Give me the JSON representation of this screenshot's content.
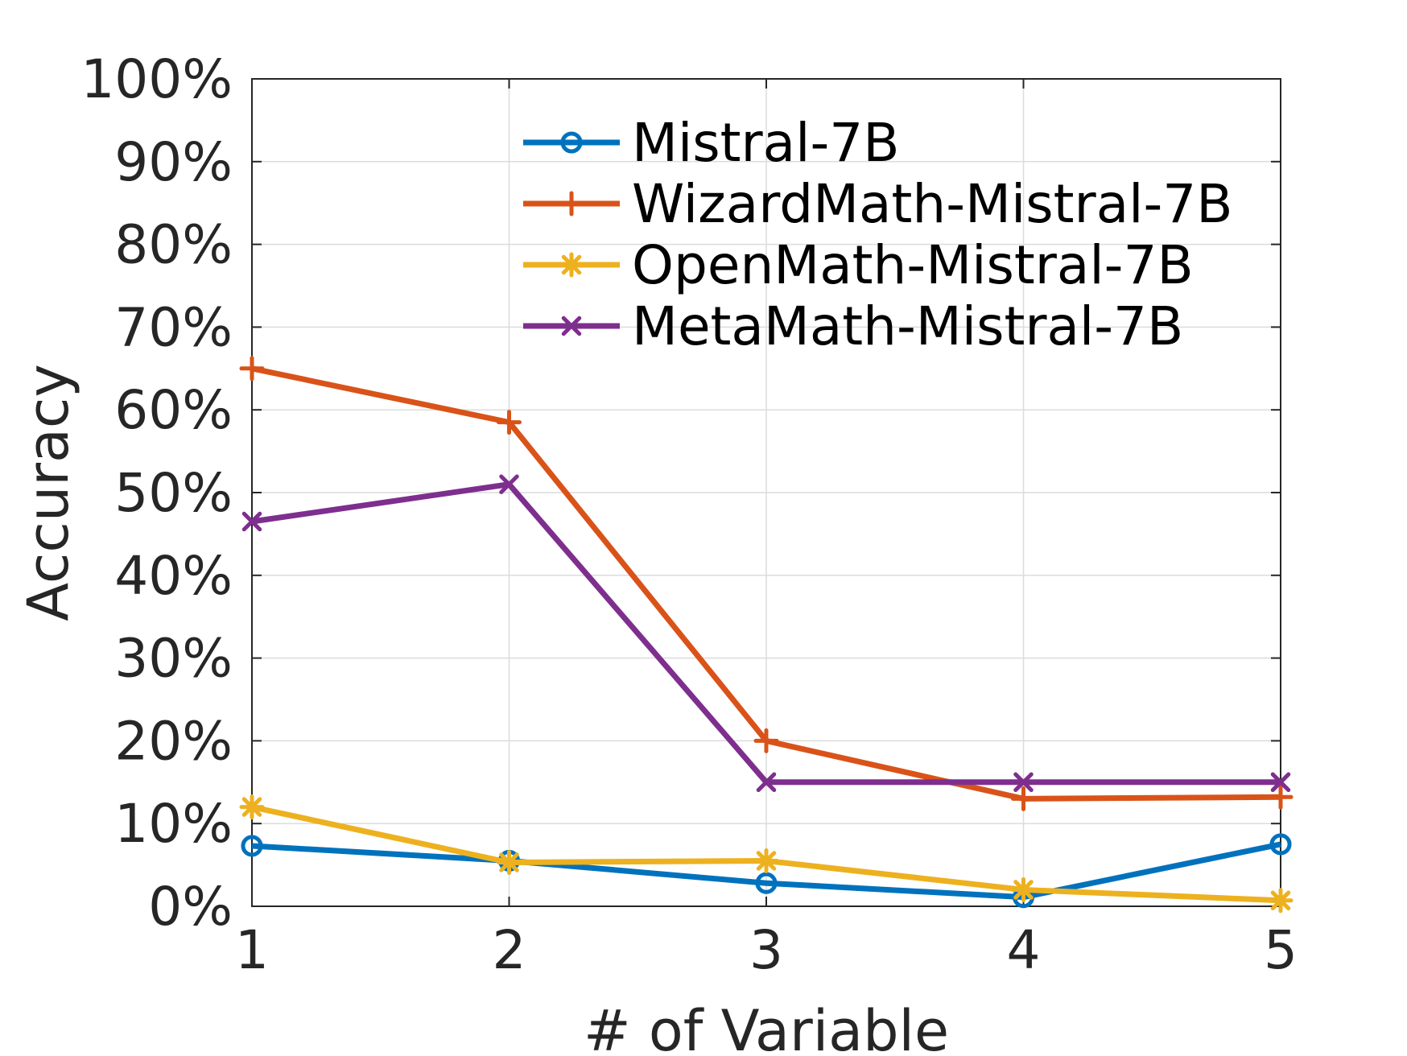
{
  "chart_data": {
    "type": "line",
    "xlabel": "# of Variable",
    "ylabel": "Accuracy",
    "x": [
      1,
      2,
      3,
      4,
      5
    ],
    "xlim": [
      1,
      5
    ],
    "ylim": [
      0,
      100
    ],
    "x_ticks": [
      "1",
      "2",
      "3",
      "4",
      "5"
    ],
    "y_ticks": [
      {
        "value": 0,
        "label": "0%"
      },
      {
        "value": 10,
        "label": "10%"
      },
      {
        "value": 20,
        "label": "20%"
      },
      {
        "value": 30,
        "label": "30%"
      },
      {
        "value": 40,
        "label": "40%"
      },
      {
        "value": 50,
        "label": "50%"
      },
      {
        "value": 60,
        "label": "60%"
      },
      {
        "value": 70,
        "label": "70%"
      },
      {
        "value": 80,
        "label": "80%"
      },
      {
        "value": 90,
        "label": "90%"
      },
      {
        "value": 100,
        "label": "100%"
      }
    ],
    "grid": true,
    "legend_position": "top-right",
    "series": [
      {
        "name": "Mistral-7B",
        "color": "#0072BD",
        "marker": "circle",
        "values": [
          7.3,
          5.5,
          2.8,
          1.1,
          7.5
        ]
      },
      {
        "name": "WizardMath-Mistral-7B",
        "color": "#D95319",
        "marker": "plus",
        "values": [
          65.0,
          58.5,
          20.0,
          13.0,
          13.2
        ]
      },
      {
        "name": "OpenMath-Mistral-7B",
        "color": "#EDB120",
        "marker": "star",
        "values": [
          12.0,
          5.3,
          5.5,
          2.0,
          0.7
        ]
      },
      {
        "name": "MetaMath-Mistral-7B",
        "color": "#7E2F8E",
        "marker": "x",
        "values": [
          46.5,
          51.0,
          15.0,
          15.0,
          15.0
        ]
      }
    ]
  }
}
